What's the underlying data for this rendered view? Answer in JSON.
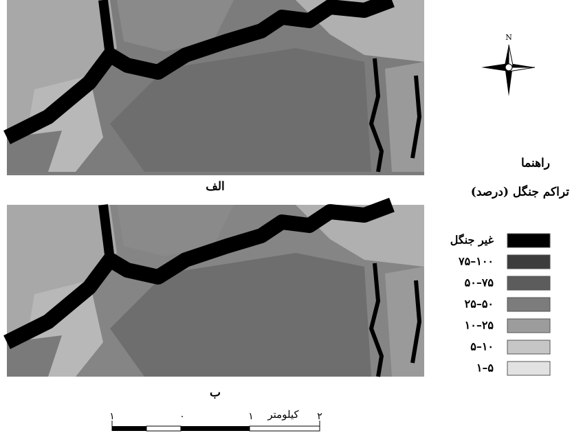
{
  "north": "N",
  "panels": [
    {
      "label": "الف"
    },
    {
      "label": "ب"
    }
  ],
  "legend": {
    "title": "راهنما",
    "subtitle": "تراکم جنگل (درصد)",
    "items": [
      {
        "label": "غیر جنگل",
        "color": "#000000"
      },
      {
        "label": "۷۵–۱۰۰",
        "color": "#3c3c3c"
      },
      {
        "label": "۵۰–۷۵",
        "color": "#5c5c5c"
      },
      {
        "label": "۲۵–۵۰",
        "color": "#7c7c7c"
      },
      {
        "label": "۱۰–۲۵",
        "color": "#9c9c9c"
      },
      {
        "label": "۵–۱۰",
        "color": "#c6c6c6"
      },
      {
        "label": "۱–۵",
        "color": "#e2e2e2"
      }
    ]
  },
  "scale_bar": {
    "unit": "کیلومتر",
    "labels": [
      "۱",
      "۰",
      "۱",
      "۲"
    ]
  }
}
